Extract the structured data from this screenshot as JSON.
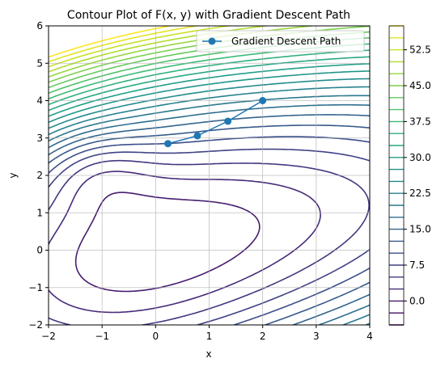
{
  "chart_data": {
    "type": "contour",
    "title": "Contour Plot of F(x, y) with Gradient Descent Path",
    "xlabel": "x",
    "ylabel": "y",
    "xlim": [
      -2,
      4
    ],
    "ylim": [
      -2,
      6
    ],
    "xticks": [
      "-2",
      "-1",
      "0",
      "1",
      "2",
      "3",
      "4"
    ],
    "yticks": [
      "-2",
      "-1",
      "0",
      "1",
      "2",
      "3",
      "4",
      "5",
      "6"
    ],
    "grid": true,
    "colormap": "viridis",
    "colorbar": {
      "min": -5,
      "max": 57.5,
      "step": 2.5,
      "ticks": [
        "0.0",
        "7.5",
        "15.0",
        "22.5",
        "30.0",
        "37.5",
        "45.0",
        "52.5"
      ]
    },
    "legend": {
      "position": "top-right",
      "entries": [
        "Gradient Descent Path"
      ]
    },
    "series": [
      {
        "name": "Gradient Descent Path",
        "color": "#1f77b4",
        "x": [
          2.0,
          1.35,
          0.78,
          0.23
        ],
        "y": [
          4.0,
          3.45,
          3.06,
          2.85
        ]
      }
    ]
  }
}
